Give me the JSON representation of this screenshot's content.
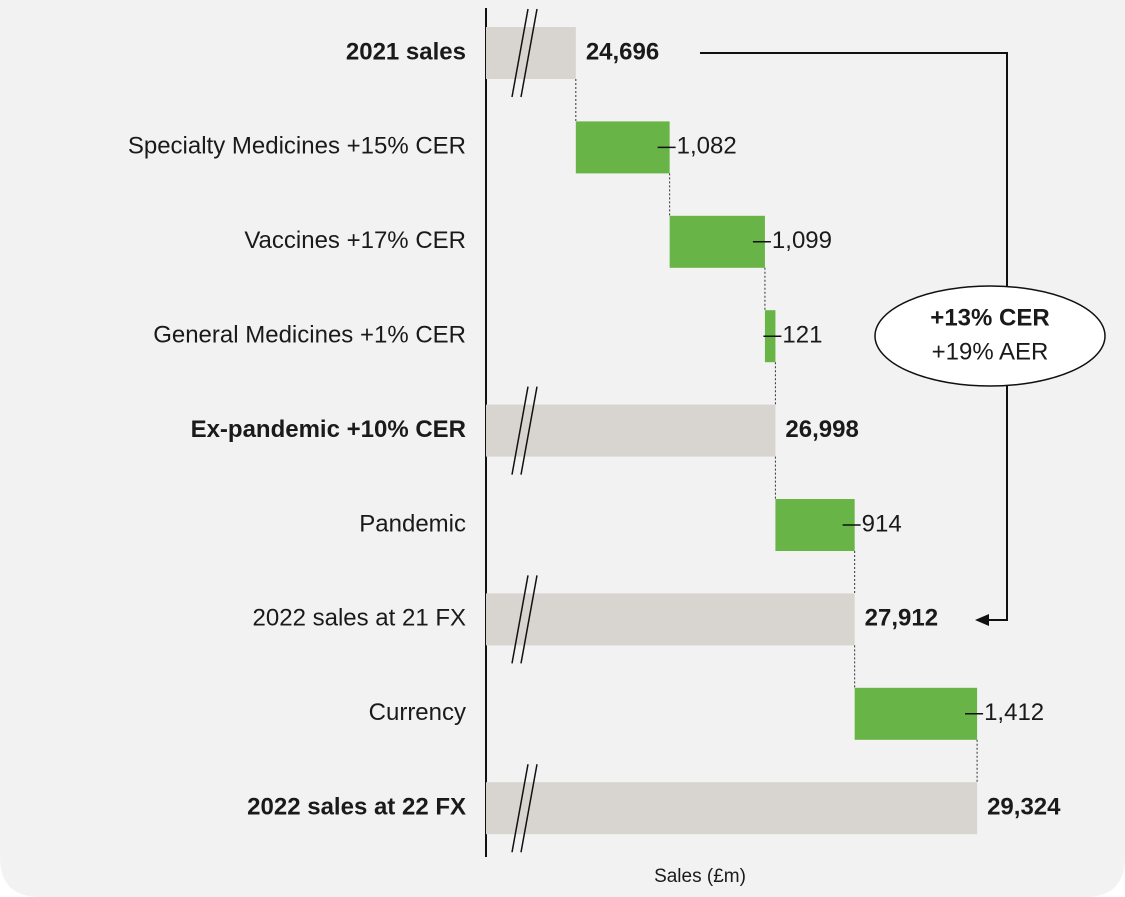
{
  "chart_data": {
    "type": "waterfall",
    "x_axis_label": "Sales (£m)",
    "categories": [
      "2021 sales",
      "Specialty Medicines +15% CER",
      "Vaccines +17% CER",
      "General Medicines +1% CER",
      "Ex-pandemic +10% CER",
      "Pandemic",
      "2022 sales at 21 FX",
      "Currency",
      "2022 sales at 22 FX"
    ],
    "values": [
      24696,
      1082,
      1099,
      121,
      26998,
      914,
      27912,
      1412,
      29324
    ],
    "value_labels": [
      "24,696",
      "1,082",
      "1,099",
      "121",
      "26,998",
      "914",
      "27,912",
      "1,412",
      "29,324"
    ],
    "total_color": "#d8d4d0",
    "increase_color": "#68b446",
    "xlim": [
      23660,
      31030
    ],
    "annotation": [
      "+13% CER",
      "+19% AER"
    ]
  }
}
